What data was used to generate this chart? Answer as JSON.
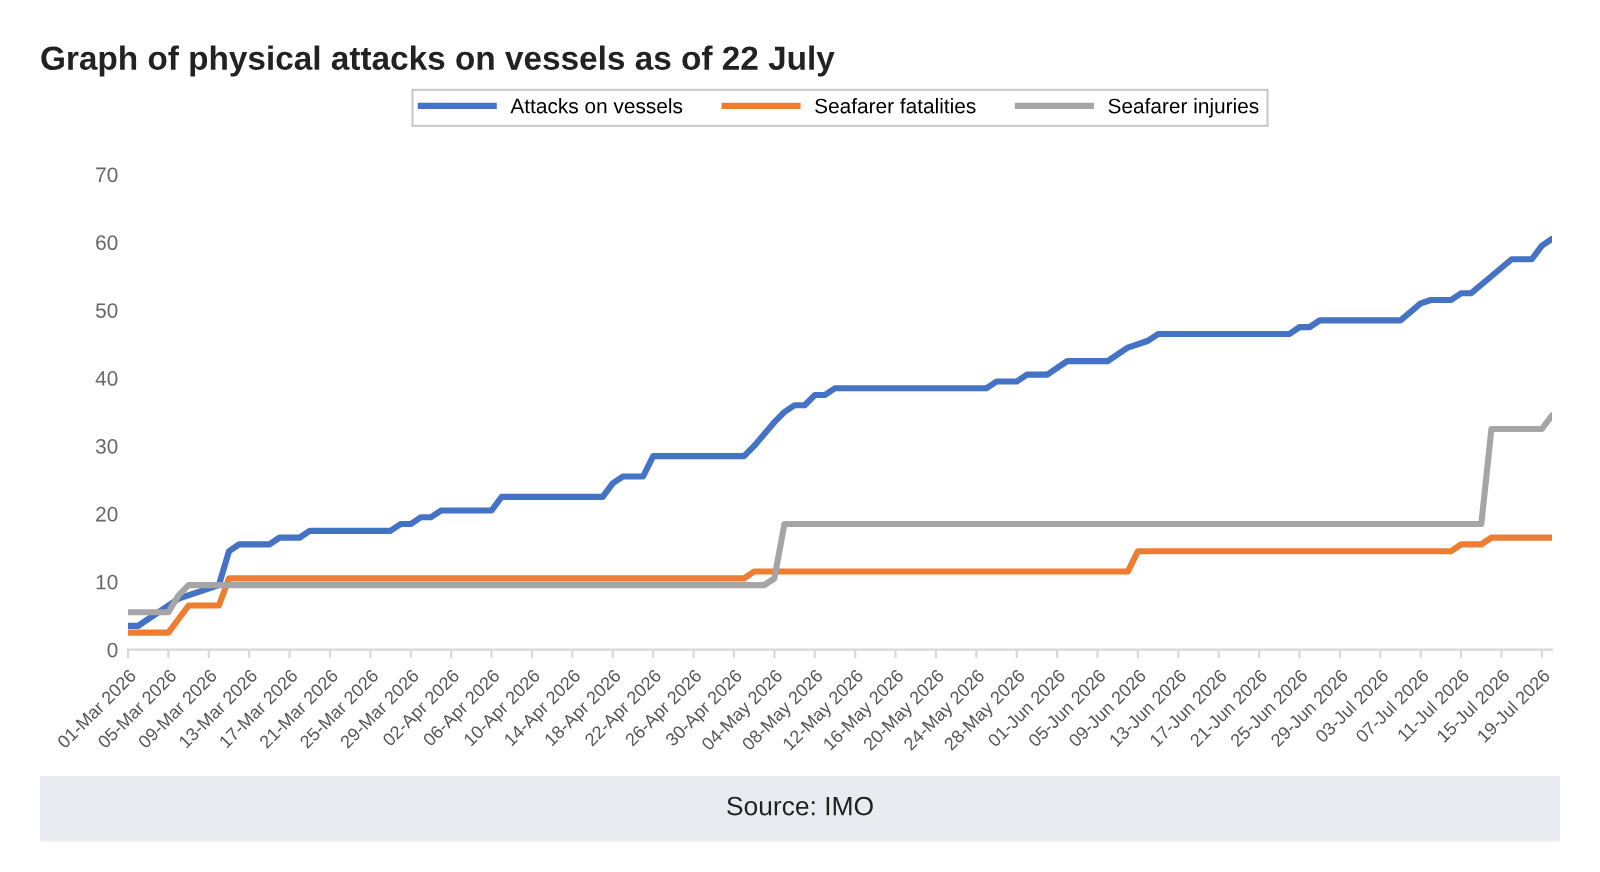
{
  "chart_data": {
    "type": "line",
    "title": "Graph of physical attacks on vessels as of 22 July",
    "annotations": [
      "Source: IMO"
    ],
    "series": [
      {
        "name": "Attacks on vessels",
        "color": "#4472c4",
        "x": [
          "2026-03-01",
          "2026-03-02",
          "2026-03-06",
          "2026-03-10",
          "2026-03-11",
          "2026-03-12",
          "2026-03-15",
          "2026-03-16",
          "2026-03-18",
          "2026-03-19",
          "2026-03-27",
          "2026-03-28",
          "2026-03-29",
          "2026-03-30",
          "2026-03-31",
          "2026-04-01",
          "2026-04-06",
          "2026-04-07",
          "2026-04-17",
          "2026-04-18",
          "2026-04-19",
          "2026-04-21",
          "2026-04-22",
          "2026-05-01",
          "2026-05-02",
          "2026-05-04",
          "2026-05-05",
          "2026-05-06",
          "2026-05-07",
          "2026-05-08",
          "2026-05-09",
          "2026-05-10",
          "2026-05-25",
          "2026-05-26",
          "2026-05-28",
          "2026-05-29",
          "2026-05-31",
          "2026-06-02",
          "2026-06-06",
          "2026-06-08",
          "2026-06-10",
          "2026-06-11",
          "2026-06-24",
          "2026-06-25",
          "2026-06-26",
          "2026-06-27",
          "2026-07-05",
          "2026-07-07",
          "2026-07-08",
          "2026-07-10",
          "2026-07-11",
          "2026-07-12",
          "2026-07-14",
          "2026-07-16",
          "2026-07-18",
          "2026-07-19",
          "2026-07-20"
        ],
        "values": [
          3.5,
          3.5,
          7.5,
          9.5,
          14.5,
          15.5,
          15.5,
          16.5,
          16.5,
          17.5,
          17.5,
          18.5,
          18.5,
          19.5,
          19.5,
          20.5,
          20.5,
          22.5,
          22.5,
          24.5,
          25.5,
          25.5,
          28.5,
          28.5,
          30,
          33.5,
          35,
          36,
          36,
          37.5,
          37.5,
          38.5,
          38.5,
          39.5,
          39.5,
          40.5,
          40.5,
          42.5,
          42.5,
          44.5,
          45.5,
          46.5,
          46.5,
          47.5,
          47.5,
          48.5,
          48.5,
          51,
          51.5,
          51.5,
          52.5,
          52.5,
          55,
          57.5,
          57.5,
          59.5,
          60.5
        ]
      },
      {
        "name": "Seafarer fatalities",
        "color": "#ed7d31",
        "x": [
          "2026-03-01",
          "2026-03-05",
          "2026-03-07",
          "2026-03-10",
          "2026-03-11",
          "2026-05-01",
          "2026-05-02",
          "2026-06-08",
          "2026-06-09",
          "2026-07-10",
          "2026-07-11",
          "2026-07-13",
          "2026-07-14",
          "2026-07-20"
        ],
        "values": [
          2.5,
          2.5,
          6.5,
          6.5,
          10.5,
          10.5,
          11.5,
          11.5,
          14.5,
          14.5,
          15.5,
          15.5,
          16.5,
          16.5
        ]
      },
      {
        "name": "Seafarer injuries",
        "color": "#a5a5a5",
        "x": [
          "2026-03-01",
          "2026-03-05",
          "2026-03-06",
          "2026-03-07",
          "2026-05-03",
          "2026-05-04",
          "2026-05-05",
          "2026-07-13",
          "2026-07-14",
          "2026-07-19",
          "2026-07-20"
        ],
        "values": [
          5.5,
          5.5,
          8,
          9.5,
          9.5,
          10.5,
          18.5,
          18.5,
          32.5,
          32.5,
          34.5
        ]
      }
    ],
    "xlim": [
      "2026-03-01",
      "2026-07-20"
    ],
    "xticks": [
      {
        "value": "2026-03-01",
        "label": "01-Mar 2026"
      },
      {
        "value": "2026-03-05",
        "label": "05-Mar 2026"
      },
      {
        "value": "2026-03-09",
        "label": "09-Mar 2026"
      },
      {
        "value": "2026-03-13",
        "label": "13-Mar 2026"
      },
      {
        "value": "2026-03-17",
        "label": "17-Mar 2026"
      },
      {
        "value": "2026-03-21",
        "label": "21-Mar 2026"
      },
      {
        "value": "2026-03-25",
        "label": "25-Mar 2026"
      },
      {
        "value": "2026-03-29",
        "label": "29-Mar 2026"
      },
      {
        "value": "2026-04-02",
        "label": "02-Apr 2026"
      },
      {
        "value": "2026-04-06",
        "label": "06-Apr 2026"
      },
      {
        "value": "2026-04-10",
        "label": "10-Apr 2026"
      },
      {
        "value": "2026-04-14",
        "label": "14-Apr 2026"
      },
      {
        "value": "2026-04-18",
        "label": "18-Apr 2026"
      },
      {
        "value": "2026-04-22",
        "label": "22-Apr 2026"
      },
      {
        "value": "2026-04-26",
        "label": "26-Apr 2026"
      },
      {
        "value": "2026-04-30",
        "label": "30-Apr 2026"
      },
      {
        "value": "2026-05-04",
        "label": "04-May 2026"
      },
      {
        "value": "2026-05-08",
        "label": "08-May 2026"
      },
      {
        "value": "2026-05-12",
        "label": "12-May 2026"
      },
      {
        "value": "2026-05-16",
        "label": "16-May 2026"
      },
      {
        "value": "2026-05-20",
        "label": "20-May 2026"
      },
      {
        "value": "2026-05-24",
        "label": "24-May 2026"
      },
      {
        "value": "2026-05-28",
        "label": "28-May 2026"
      },
      {
        "value": "2026-06-01",
        "label": "01-Jun 2026"
      },
      {
        "value": "2026-06-05",
        "label": "05-Jun 2026"
      },
      {
        "value": "2026-06-09",
        "label": "09-Jun 2026"
      },
      {
        "value": "2026-06-13",
        "label": "13-Jun 2026"
      },
      {
        "value": "2026-06-17",
        "label": "17-Jun 2026"
      },
      {
        "value": "2026-06-21",
        "label": "21-Jun 2026"
      },
      {
        "value": "2026-06-25",
        "label": "25-Jun 2026"
      },
      {
        "value": "2026-06-29",
        "label": "29-Jun 2026"
      },
      {
        "value": "2026-07-03",
        "label": "03-Jul 2026"
      },
      {
        "value": "2026-07-07",
        "label": "07-Jul 2026"
      },
      {
        "value": "2026-07-11",
        "label": "11-Jul 2026"
      },
      {
        "value": "2026-07-15",
        "label": "15-Jul 2026"
      },
      {
        "value": "2026-07-19",
        "label": "19-Jul 2026"
      }
    ],
    "ylim": [
      0,
      70
    ],
    "yticks": [
      0,
      10,
      20,
      30,
      40,
      50,
      60,
      70
    ],
    "legend": "top",
    "marker": "none",
    "line_style": "solid"
  }
}
